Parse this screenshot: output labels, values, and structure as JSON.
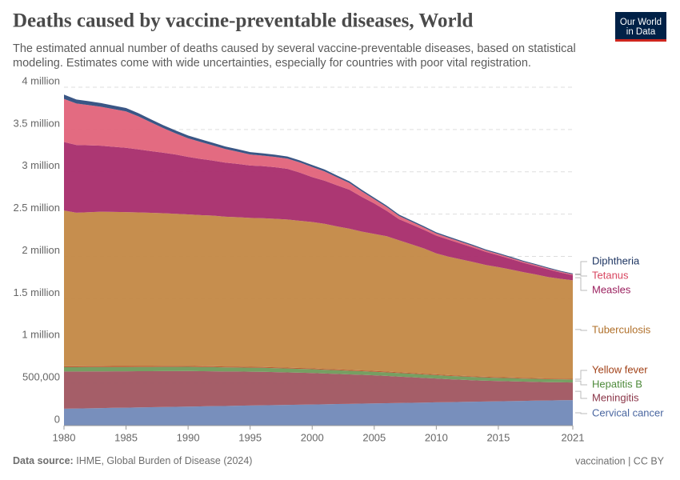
{
  "chart_data": {
    "type": "stacked-area",
    "title": "Deaths caused by vaccine-preventable diseases, World",
    "subtitle": "The estimated annual number of deaths caused by several vaccine-preventable diseases, based on statistical modeling. Estimates come with wide uncertainties, especially for countries with poor vital registration.",
    "logo": "Our World in Data",
    "source_label": "Data source:",
    "source": "IHME, Global Burden of Disease (2024)",
    "footer_right": "vaccination | CC BY",
    "x": [
      1980,
      1981,
      1982,
      1983,
      1984,
      1985,
      1986,
      1987,
      1988,
      1989,
      1990,
      1991,
      1992,
      1993,
      1994,
      1995,
      1996,
      1997,
      1998,
      1999,
      2000,
      2001,
      2002,
      2003,
      2004,
      2005,
      2006,
      2007,
      2008,
      2009,
      2010,
      2011,
      2012,
      2013,
      2014,
      2015,
      2016,
      2017,
      2018,
      2019,
      2020,
      2021
    ],
    "xlim": [
      1980,
      2021
    ],
    "xticks": [
      1980,
      1985,
      1990,
      1995,
      2000,
      2005,
      2010,
      2015,
      2021
    ],
    "ylim": [
      0,
      4000000
    ],
    "yticks": [
      0,
      {
        "value": 500000,
        "label": "500,000"
      },
      {
        "value": 1000000,
        "label": "1 million"
      },
      {
        "value": 1500000,
        "label": "1.5 million"
      },
      {
        "value": 2000000,
        "label": "2 million"
      },
      {
        "value": 2500000,
        "label": "2.5 million"
      },
      {
        "value": 3000000,
        "label": "3 million"
      },
      {
        "value": 3500000,
        "label": "3.5 million"
      },
      {
        "value": 4000000,
        "label": "4 million"
      }
    ],
    "grid": true,
    "series": [
      {
        "name": "Cervical cancer",
        "color": "#7189b8",
        "label_color": "#4a66a0",
        "values": [
          200000,
          202000,
          205000,
          207000,
          210000,
          212000,
          215000,
          217000,
          220000,
          222000,
          225000,
          227000,
          230000,
          232000,
          235000,
          237000,
          240000,
          242000,
          245000,
          247000,
          250000,
          252000,
          255000,
          257000,
          260000,
          262000,
          265000,
          267000,
          270000,
          272000,
          275000,
          277000,
          280000,
          282000,
          285000,
          287000,
          290000,
          292000,
          295000,
          297000,
          300000,
          302000
        ]
      },
      {
        "name": "Meningitis",
        "color": "#a05560",
        "label_color": "#8a3548",
        "values": [
          440000,
          438000,
          436000,
          434000,
          432000,
          430000,
          428000,
          426000,
          424000,
          422000,
          420000,
          416000,
          412000,
          408000,
          404000,
          400000,
          396000,
          390000,
          384000,
          378000,
          372000,
          364000,
          356000,
          348000,
          340000,
          332000,
          322000,
          312000,
          302000,
          292000,
          282000,
          272000,
          262000,
          254000,
          246000,
          240000,
          234000,
          228000,
          222000,
          216000,
          212000,
          208000
        ]
      },
      {
        "name": "Hepatitis B",
        "color": "#6f9a5a",
        "label_color": "#4d8a3a",
        "values": [
          50000,
          50000,
          50000,
          50000,
          50000,
          50000,
          50000,
          50000,
          50000,
          50000,
          50000,
          49000,
          49000,
          48000,
          48000,
          47000,
          47000,
          46000,
          46000,
          45000,
          45000,
          44000,
          44000,
          43000,
          43000,
          42000,
          42000,
          41000,
          41000,
          40000,
          40000,
          39000,
          39000,
          38000,
          38000,
          37000,
          37000,
          36000,
          36000,
          35000,
          35000,
          35000
        ]
      },
      {
        "name": "Yellow fever",
        "color": "#b4552a",
        "label_color": "#a24218",
        "values": [
          12000,
          12000,
          12000,
          12000,
          12000,
          12000,
          12000,
          12000,
          12000,
          12000,
          11000,
          11000,
          11000,
          11000,
          11000,
          11000,
          11000,
          11000,
          11000,
          11000,
          10000,
          10000,
          10000,
          10000,
          10000,
          10000,
          10000,
          10000,
          10000,
          10000,
          9000,
          9000,
          9000,
          9000,
          9000,
          9000,
          9000,
          9000,
          9000,
          9000,
          8000,
          8000
        ]
      },
      {
        "name": "Tuberculosis",
        "color": "#c38845",
        "label_color": "#b0702a",
        "values": [
          1840000,
          1815000,
          1820000,
          1825000,
          1822000,
          1820000,
          1815000,
          1810000,
          1805000,
          1798000,
          1790000,
          1785000,
          1780000,
          1770000,
          1765000,
          1760000,
          1758000,
          1755000,
          1750000,
          1740000,
          1730000,
          1715000,
          1690000,
          1670000,
          1640000,
          1620000,
          1600000,
          1560000,
          1520000,
          1480000,
          1430000,
          1400000,
          1375000,
          1350000,
          1320000,
          1300000,
          1275000,
          1250000,
          1225000,
          1200000,
          1180000,
          1165000
        ]
      },
      {
        "name": "Measles",
        "color": "#a82c6c",
        "label_color": "#9a1f5e",
        "values": [
          810000,
          800000,
          790000,
          780000,
          770000,
          760000,
          745000,
          730000,
          715000,
          700000,
          680000,
          665000,
          650000,
          640000,
          630000,
          620000,
          615000,
          610000,
          600000,
          570000,
          530000,
          510000,
          485000,
          460000,
          410000,
          360000,
          300000,
          250000,
          235000,
          220000,
          210000,
          200000,
          185000,
          170000,
          155000,
          140000,
          125000,
          110000,
          100000,
          90000,
          75000,
          60000
        ]
      },
      {
        "name": "Tetanus",
        "color": "#e2637a",
        "label_color": "#d8455f",
        "values": [
          510000,
          490000,
          475000,
          460000,
          445000,
          430000,
          390000,
          340000,
          290000,
          250000,
          220000,
          200000,
          180000,
          160000,
          145000,
          130000,
          125000,
          122000,
          120000,
          120000,
          120000,
          110000,
          95000,
          80000,
          65000,
          50000,
          45000,
          38000,
          32000,
          28000,
          25000,
          23000,
          21000,
          19000,
          17000,
          15000,
          14000,
          13000,
          12000,
          11000,
          10000,
          10000
        ]
      },
      {
        "name": "Diphtheria",
        "color": "#2f4d7e",
        "label_color": "#1d3461",
        "values": [
          50000,
          48000,
          46000,
          44000,
          42000,
          40000,
          38000,
          36000,
          35000,
          34000,
          33000,
          32000,
          31000,
          30000,
          29000,
          28000,
          27000,
          26000,
          25000,
          24000,
          23000,
          22000,
          21000,
          20000,
          19000,
          18000,
          17000,
          16000,
          15000,
          15000,
          14000,
          14000,
          13000,
          13000,
          12000,
          12000,
          12000,
          11000,
          11000,
          11000,
          10000,
          10000
        ]
      }
    ]
  }
}
